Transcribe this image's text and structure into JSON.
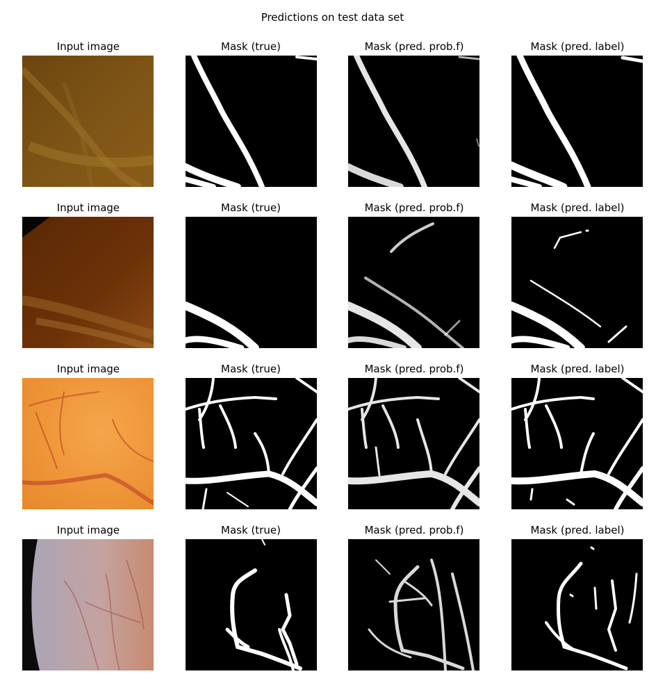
{
  "figure": {
    "title": "Predictions on test data set",
    "column_titles": [
      "Input image",
      "Mask (true)",
      "Mask (pred. prob.f)",
      "Mask (pred. label)"
    ],
    "rows": 4,
    "colors": {
      "mask_background": "#000000",
      "mask_vessel": "#ffffff",
      "row1_input": "#7a4e12",
      "row2_input": "#6a2e06",
      "row3_input": "#f09838",
      "row4_input": "#bfa3a8"
    }
  }
}
